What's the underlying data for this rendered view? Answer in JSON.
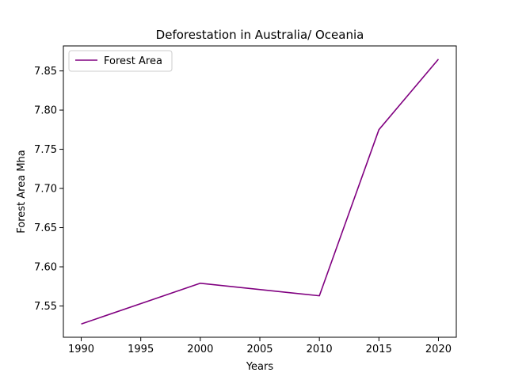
{
  "chart_data": {
    "type": "line",
    "title": "Deforestation in Australia/ Oceania",
    "xlabel": "Years",
    "ylabel": "Forest Area Mha",
    "x": [
      1990,
      2000,
      2010,
      2015,
      2020
    ],
    "series": [
      {
        "name": "Forest Area",
        "color": "#800080",
        "values": [
          7.527,
          7.579,
          7.563,
          7.775,
          7.865
        ]
      }
    ],
    "xlim": [
      1988.5,
      2021.5
    ],
    "ylim": [
      7.5101,
      7.8819
    ],
    "xticks": [
      1990,
      1995,
      2000,
      2005,
      2010,
      2015,
      2020
    ],
    "xtick_labels": [
      "1990",
      "1995",
      "2000",
      "2005",
      "2010",
      "2015",
      "2020"
    ],
    "yticks": [
      7.55,
      7.6,
      7.65,
      7.7,
      7.75,
      7.8,
      7.85
    ],
    "ytick_labels": [
      "7.55",
      "7.60",
      "7.65",
      "7.70",
      "7.75",
      "7.80",
      "7.85"
    ],
    "grid": false,
    "legend_position": "top-left"
  }
}
